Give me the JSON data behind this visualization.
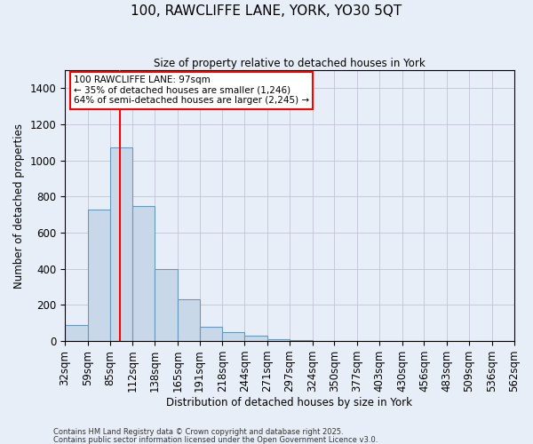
{
  "title": "100, RAWCLIFFE LANE, YORK, YO30 5QT",
  "subtitle": "Size of property relative to detached houses in York",
  "xlabel": "Distribution of detached houses by size in York",
  "ylabel": "Number of detached properties",
  "bar_color": "#c8d8e8",
  "bar_edge_color": "#6699bb",
  "background_color": "#e8eef8",
  "grid_color": "#bbbbcc",
  "annotation_text": "100 RAWCLIFFE LANE: 97sqm\n← 35% of detached houses are smaller (1,246)\n64% of semi-detached houses are larger (2,245) →",
  "vline_x": 97,
  "vline_color": "red",
  "footnote1": "Contains HM Land Registry data © Crown copyright and database right 2025.",
  "footnote2": "Contains public sector information licensed under the Open Government Licence v3.0.",
  "bins": [
    32,
    59,
    85,
    112,
    138,
    165,
    191,
    218,
    244,
    271,
    297,
    324,
    350,
    377,
    403,
    430,
    456,
    483,
    509,
    536,
    562
  ],
  "counts": [
    90,
    730,
    1075,
    750,
    400,
    230,
    80,
    50,
    30,
    10,
    5,
    2,
    1,
    0,
    0,
    0,
    0,
    0,
    0,
    0
  ],
  "ylim": [
    0,
    1500
  ],
  "yticks": [
    0,
    200,
    400,
    600,
    800,
    1000,
    1200,
    1400
  ]
}
